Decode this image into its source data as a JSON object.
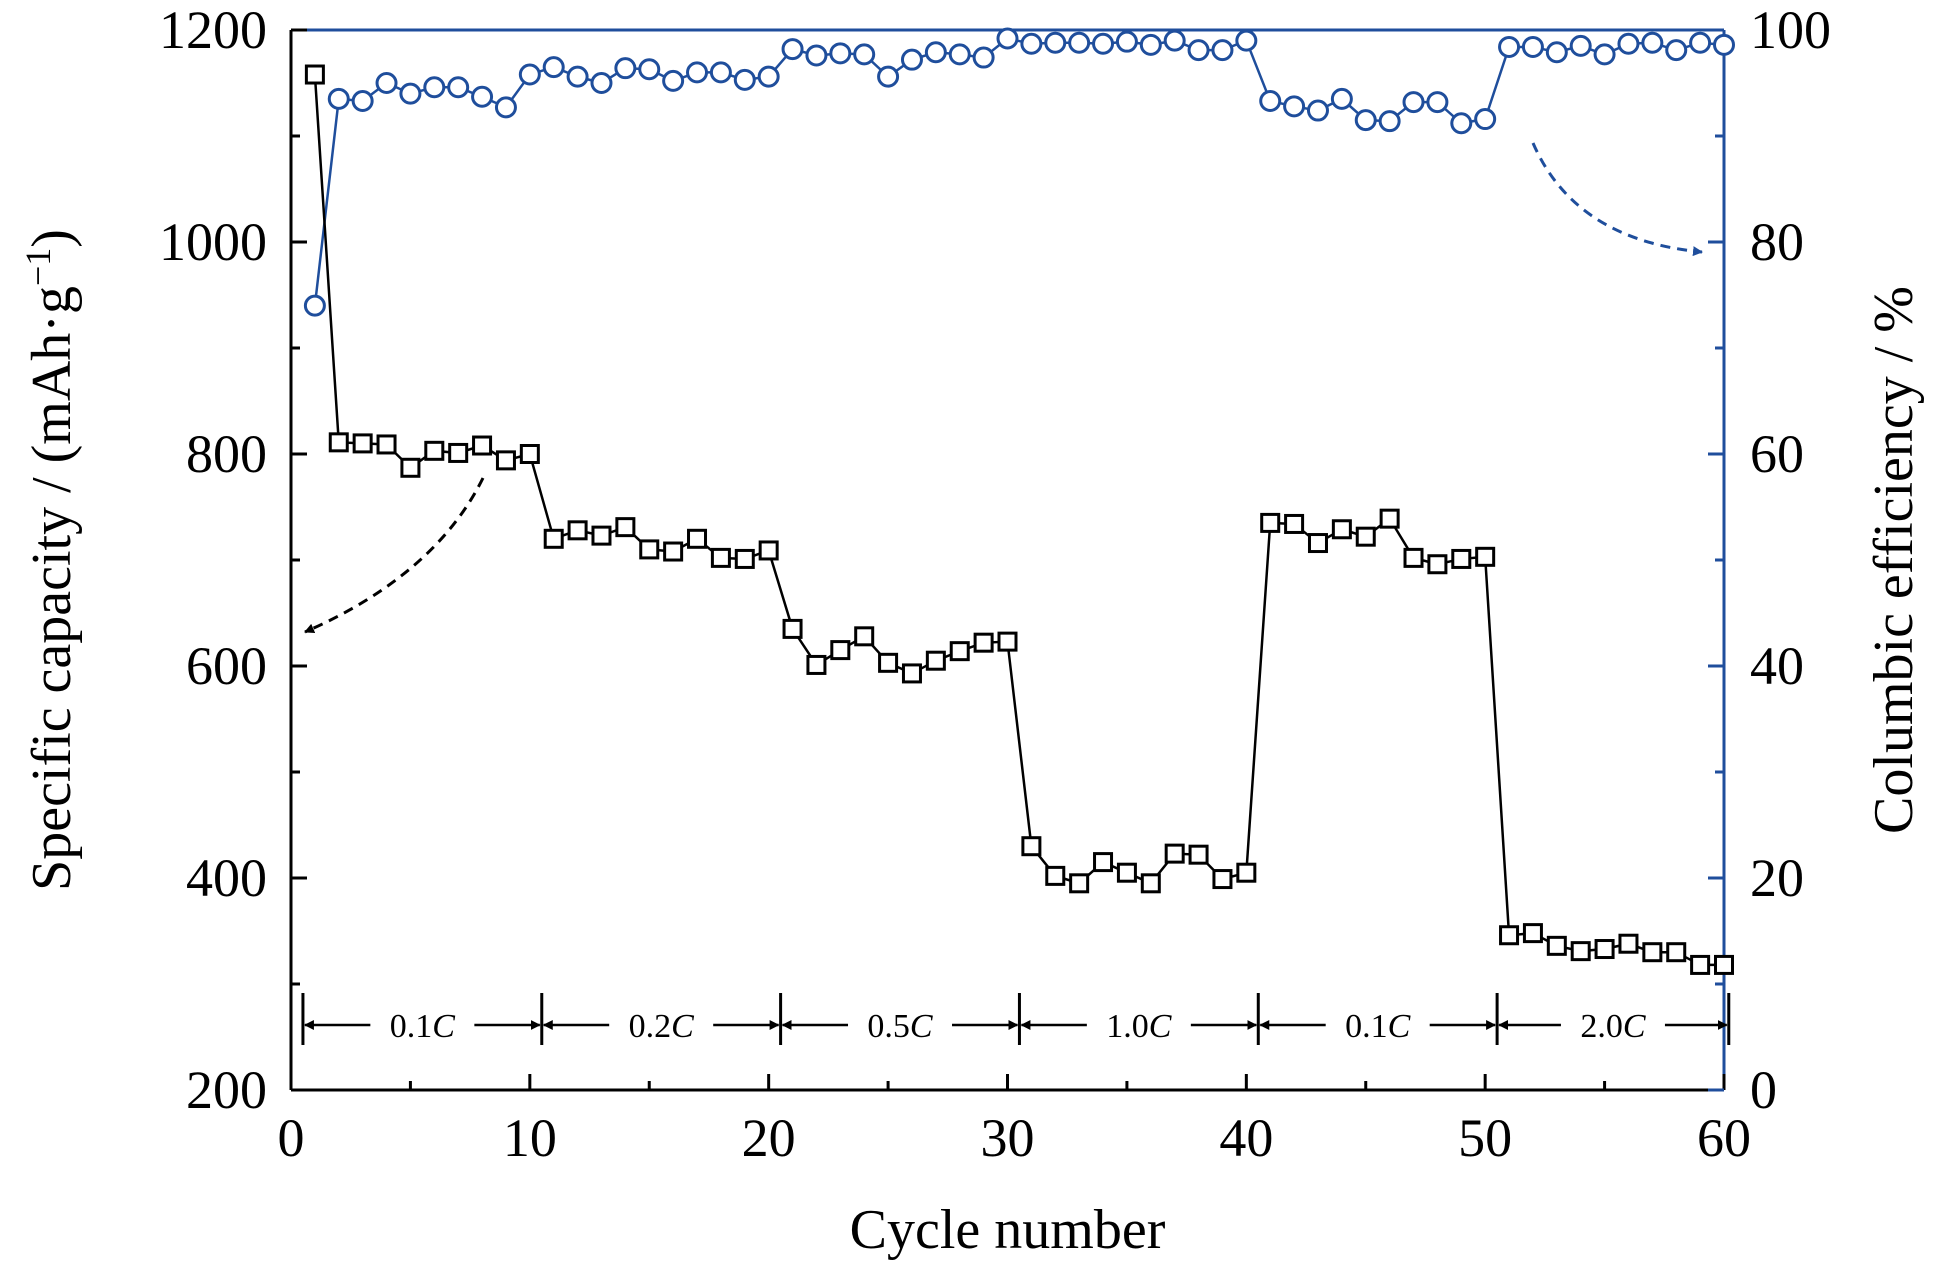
{
  "chart_data": {
    "type": "scatter",
    "xlabel": "Cycle number",
    "ylabel": "Specific capacity / (mAh·g",
    "ylabel_sup": "−1",
    "ylabel_close": ")",
    "y2label": "Columbic efficiency / %",
    "xlim": [
      0,
      60
    ],
    "ylim": [
      200,
      1200
    ],
    "y2lim": [
      0,
      100
    ],
    "x_ticks": [
      0,
      10,
      20,
      30,
      40,
      50,
      60
    ],
    "y_ticks": [
      200,
      400,
      600,
      800,
      1000,
      1200
    ],
    "y2_ticks": [
      0,
      20,
      40,
      60,
      80,
      100
    ],
    "grid": false,
    "colors": {
      "capacity": "#000000",
      "efficiency": "#1f4e9c",
      "right_axis": "#1f4e9c"
    },
    "series": [
      {
        "axis": "left",
        "marker": "square",
        "x": [
          1,
          2,
          3,
          4,
          5,
          6,
          7,
          8,
          9,
          10,
          11,
          12,
          13,
          14,
          15,
          16,
          17,
          18,
          19,
          20,
          21,
          22,
          23,
          24,
          25,
          26,
          27,
          28,
          29,
          30,
          31,
          32,
          33,
          34,
          35,
          36,
          37,
          38,
          39,
          40,
          41,
          42,
          43,
          44,
          45,
          46,
          47,
          48,
          49,
          50,
          51,
          52,
          53,
          54,
          55,
          56,
          57,
          58,
          59,
          60
        ],
        "values": [
          1158,
          811,
          810,
          809,
          787,
          803,
          801,
          808,
          794,
          800,
          720,
          728,
          723,
          731,
          710,
          708,
          720,
          702,
          701,
          709,
          635,
          601,
          615,
          628,
          603,
          593,
          605,
          614,
          622,
          623,
          430,
          402,
          395,
          415,
          405,
          395,
          423,
          422,
          399,
          405,
          735,
          734,
          716,
          729,
          722,
          739,
          702,
          696,
          701,
          703,
          346,
          348,
          336,
          331,
          333,
          338,
          330,
          330,
          318,
          318
        ]
      },
      {
        "axis": "right",
        "marker": "circle",
        "x": [
          1,
          2,
          3,
          4,
          5,
          6,
          7,
          8,
          9,
          10,
          11,
          12,
          13,
          14,
          15,
          16,
          17,
          18,
          19,
          20,
          21,
          22,
          23,
          24,
          25,
          26,
          27,
          28,
          29,
          30,
          31,
          32,
          33,
          34,
          35,
          36,
          37,
          38,
          39,
          40,
          41,
          42,
          43,
          44,
          45,
          46,
          47,
          48,
          49,
          50,
          51,
          52,
          53,
          54,
          55,
          56,
          57,
          58,
          59,
          60
        ],
        "values": [
          74,
          93.5,
          93.3,
          95,
          94,
          94.6,
          94.6,
          93.7,
          92.7,
          95.8,
          96.5,
          95.6,
          95,
          96.4,
          96.3,
          95.2,
          96,
          96,
          95.3,
          95.6,
          98.2,
          97.6,
          97.8,
          97.7,
          95.6,
          97.2,
          97.9,
          97.7,
          97.4,
          99.2,
          98.7,
          98.8,
          98.8,
          98.7,
          98.9,
          98.6,
          99,
          98.1,
          98.1,
          99,
          93.3,
          92.8,
          92.4,
          93.5,
          91.5,
          91.4,
          93.2,
          93.2,
          91.2,
          91.6,
          98.4,
          98.4,
          97.9,
          98.5,
          97.7,
          98.7,
          98.8,
          98.1,
          98.8,
          98.6
        ]
      }
    ],
    "rate_segments": [
      {
        "label": "0.1",
        "unit": "C",
        "from": 0.5,
        "to": 10.5
      },
      {
        "label": "0.2",
        "unit": "C",
        "from": 10.5,
        "to": 20.5
      },
      {
        "label": "0.5",
        "unit": "C",
        "from": 20.5,
        "to": 30.5
      },
      {
        "label": "1.0",
        "unit": "C",
        "from": 30.5,
        "to": 40.5
      },
      {
        "label": "0.1",
        "unit": "C",
        "from": 40.5,
        "to": 50.5
      },
      {
        "label": "2.0",
        "unit": "C",
        "from": 50.5,
        "to": 60.2
      }
    ]
  }
}
